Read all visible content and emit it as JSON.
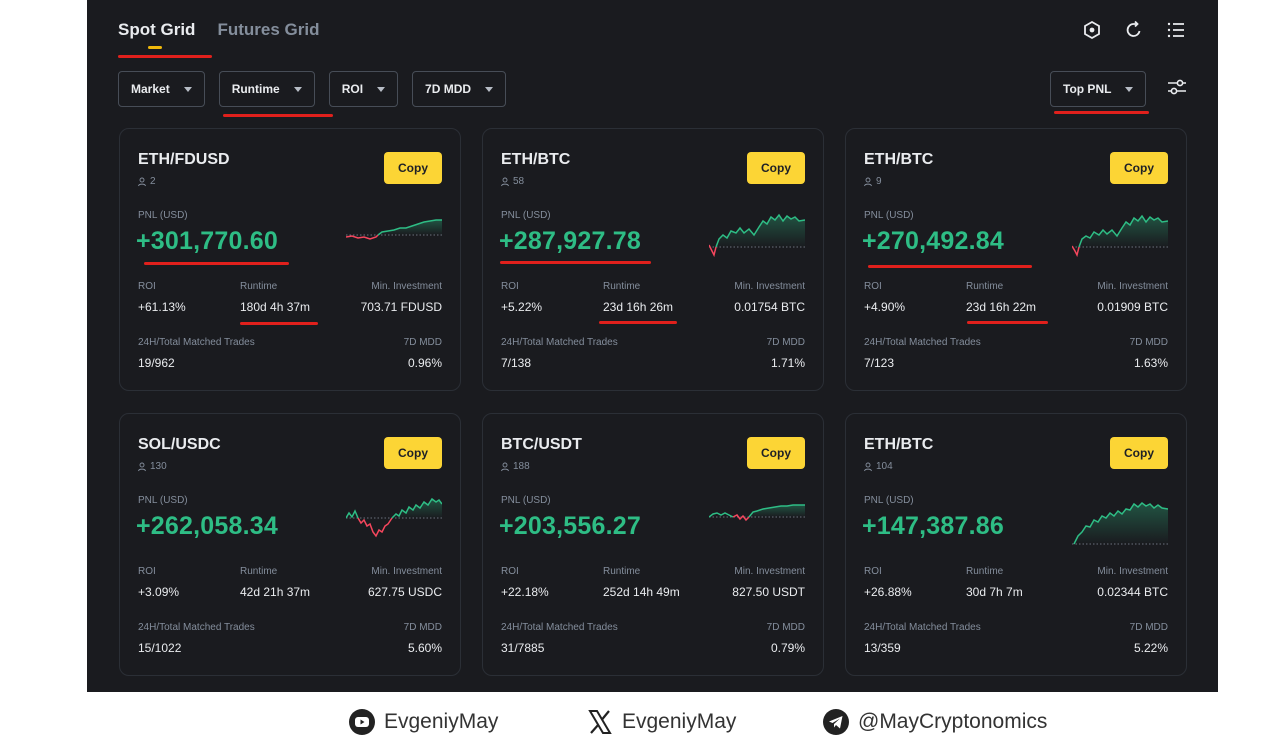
{
  "tabs": [
    {
      "label": "Spot Grid",
      "active": true
    },
    {
      "label": "Futures Grid",
      "active": false
    }
  ],
  "header_icons": [
    "settings-hex-icon",
    "refresh-icon",
    "list-icon"
  ],
  "filters": [
    {
      "label": "Market"
    },
    {
      "label": "Runtime"
    },
    {
      "label": "ROI"
    },
    {
      "label": "7D MDD"
    }
  ],
  "sort": {
    "label": "Top PNL"
  },
  "labels": {
    "copy": "Copy",
    "pnl": "PNL (USD)",
    "roi": "ROI",
    "runtime": "Runtime",
    "min_investment": "Min. Investment",
    "trades": "24H/Total Matched Trades",
    "mdd": "7D MDD"
  },
  "cards": [
    {
      "pair": "ETH/FDUSD",
      "followers": "2",
      "pnl": "+301,770.60",
      "roi": "+61.13%",
      "runtime": "180d 4h 37m",
      "min_investment": "703.71 FDUSD",
      "trades": "19/962",
      "mdd": "0.96%"
    },
    {
      "pair": "ETH/BTC",
      "followers": "58",
      "pnl": "+287,927.78",
      "roi": "+5.22%",
      "runtime": "23d 16h 26m",
      "min_investment": "0.01754 BTC",
      "trades": "7/138",
      "mdd": "1.71%"
    },
    {
      "pair": "ETH/BTC",
      "followers": "9",
      "pnl": "+270,492.84",
      "roi": "+4.90%",
      "runtime": "23d 16h 22m",
      "min_investment": "0.01909 BTC",
      "trades": "7/123",
      "mdd": "1.63%"
    },
    {
      "pair": "SOL/USDC",
      "followers": "130",
      "pnl": "+262,058.34",
      "roi": "+3.09%",
      "runtime": "42d 21h 37m",
      "min_investment": "627.75 USDC",
      "trades": "15/1022",
      "mdd": "5.60%"
    },
    {
      "pair": "BTC/USDT",
      "followers": "188",
      "pnl": "+203,556.27",
      "roi": "+22.18%",
      "runtime": "252d 14h 49m",
      "min_investment": "827.50 USDT",
      "trades": "31/7885",
      "mdd": "0.79%"
    },
    {
      "pair": "ETH/BTC",
      "followers": "104",
      "pnl": "+147,387.86",
      "roi": "+26.88%",
      "runtime": "30d 7h 7m",
      "min_investment": "0.02344 BTC",
      "trades": "13/359",
      "mdd": "5.22%"
    }
  ],
  "footer": {
    "youtube": "EvgeniyMay",
    "x": "EvgeniyMay",
    "telegram": "@MayCryptonomics"
  },
  "colors": {
    "positive": "#2ebd85",
    "negative": "#f6465d",
    "accent": "#fcd535",
    "annotation": "#e0201c"
  }
}
